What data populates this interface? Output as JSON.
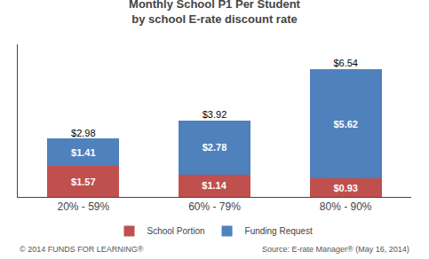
{
  "chart_data": {
    "type": "bar",
    "title": "Monthly School P1 Per Student",
    "subtitle": "by school E-rate discount rate",
    "categories": [
      "20% - 59%",
      "60% - 79%",
      "80% - 90%"
    ],
    "series": [
      {
        "name": "School Portion",
        "color": "#C0504D",
        "values": [
          1.57,
          1.14,
          0.93
        ],
        "value_labels": [
          "$1.57",
          "$1.14",
          "$0.93"
        ]
      },
      {
        "name": "Funding Request",
        "color": "#4F81BD",
        "values": [
          1.41,
          2.78,
          5.62
        ],
        "value_labels": [
          "$1.41",
          "$2.78",
          "$5.62"
        ]
      }
    ],
    "totals": [
      2.98,
      3.92,
      6.54
    ],
    "total_labels": [
      "$2.98",
      "$3.92",
      "$6.54"
    ],
    "stacked": true,
    "data_labels": true,
    "ylim": [
      0,
      7.8
    ],
    "tick_labels": "x",
    "grid": false,
    "legend": "bottom",
    "annotations": [
      "© 2014 FUNDS FOR LEARNING®",
      "Source: E-rate Manager® (May 16, 2014)"
    ]
  }
}
